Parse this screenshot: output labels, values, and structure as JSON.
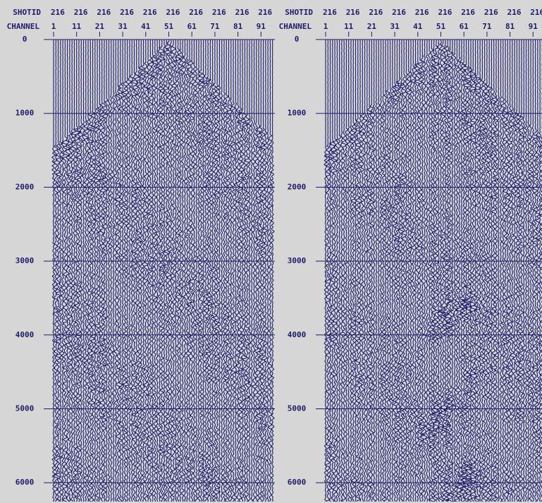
{
  "panels": [
    {
      "shotid_label": "SHOTID",
      "channel_label": "CHANNEL",
      "shotids": [
        "216",
        "216",
        "216",
        "216",
        "216",
        "216",
        "216",
        "216",
        "216",
        "216"
      ],
      "channels": [
        "1",
        "11",
        "21",
        "31",
        "41",
        "51",
        "61",
        "71",
        "81",
        "91"
      ],
      "time_ticks": [
        0,
        1000,
        2000,
        3000,
        4000,
        5000,
        6000
      ]
    },
    {
      "shotid_label": "SHOTID",
      "channel_label": "CHANNEL",
      "shotids": [
        "216",
        "216",
        "216",
        "216",
        "216",
        "216",
        "216",
        "216",
        "216",
        "216"
      ],
      "channels": [
        "1",
        "11",
        "21",
        "31",
        "41",
        "51",
        "61",
        "71",
        "81",
        "91"
      ],
      "time_ticks": [
        0,
        1000,
        2000,
        3000,
        4000,
        5000,
        6000
      ]
    }
  ]
}
